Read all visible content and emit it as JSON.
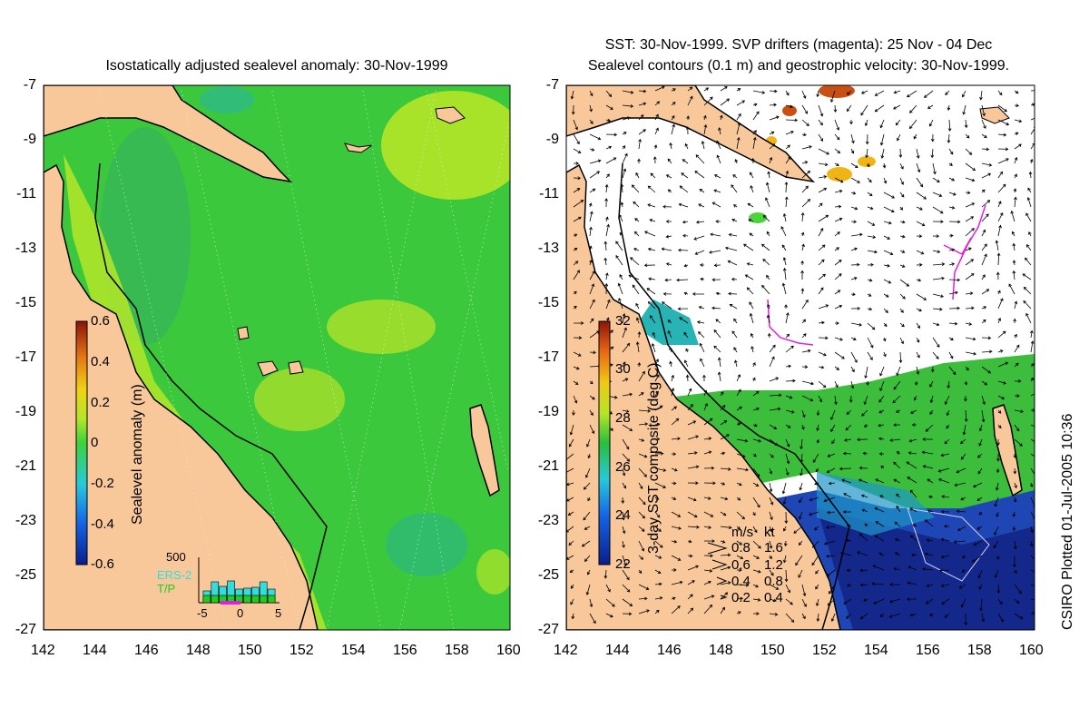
{
  "left_panel": {
    "title": "Isostatically adjusted sealevel anomaly: 30-Nov-1999",
    "colorbar": {
      "label": "Sealevel anomaly (m)",
      "ticks": [
        "0.6",
        "0.4",
        "0.2",
        "0",
        "-0.2",
        "-0.4",
        "-0.6"
      ],
      "range": [
        -0.6,
        0.6
      ]
    },
    "inset": {
      "y_max_label": "500",
      "x_ticks": [
        "-5",
        "0",
        "5"
      ],
      "legend": [
        {
          "label": "ERS-2",
          "color": "#33dddd"
        },
        {
          "label": "T/P",
          "color": "#22cc22"
        }
      ],
      "bars": [
        {
          "x": -4,
          "value": 130
        },
        {
          "x": -3,
          "value": 230
        },
        {
          "x": -2,
          "value": 180
        },
        {
          "x": -1,
          "value": 240
        },
        {
          "x": 0,
          "value": 150
        },
        {
          "x": 1,
          "value": 160
        },
        {
          "x": 2,
          "value": 170
        },
        {
          "x": 3,
          "value": 230
        },
        {
          "x": 4,
          "value": 150
        }
      ]
    }
  },
  "right_panel": {
    "title_line1": "SST: 30-Nov-1999. SVP drifters (magenta): 25 Nov - 04 Dec",
    "title_line2": "Sealevel contours (0.1 m) and geostrophic velocity: 30-Nov-1999.",
    "colorbar": {
      "label": "3-day SST composite (deg C)",
      "ticks": [
        "32",
        "30",
        "28",
        "26",
        "24",
        "22"
      ],
      "range": [
        22,
        32
      ]
    },
    "velocity_key": {
      "header_ms": "m/s",
      "header_kt": "kt",
      "rows": [
        {
          "ms": "0.8",
          "kt": "1.6"
        },
        {
          "ms": "0.6",
          "kt": "1.2"
        },
        {
          "ms": "0.4",
          "kt": "0.8"
        },
        {
          "ms": "0.2",
          "kt": "0.4"
        }
      ]
    }
  },
  "axes": {
    "lat_ticks": [
      "-7",
      "-9",
      "-11",
      "-13",
      "-15",
      "-17",
      "-19",
      "-21",
      "-23",
      "-25",
      "-27"
    ],
    "lon_ticks": [
      "142",
      "144",
      "146",
      "148",
      "150",
      "152",
      "154",
      "156",
      "158",
      "160"
    ]
  },
  "credit": "CSIRO Plotted 01-Jul-2005 10:36",
  "colors": {
    "land": "#f8c89a",
    "ocean_green": "#3cc83c",
    "anomaly_yellow": "#b4e628",
    "sst_blue": "#1e46b4",
    "cloud": "#ffffff",
    "drifter": "#e020e0"
  }
}
